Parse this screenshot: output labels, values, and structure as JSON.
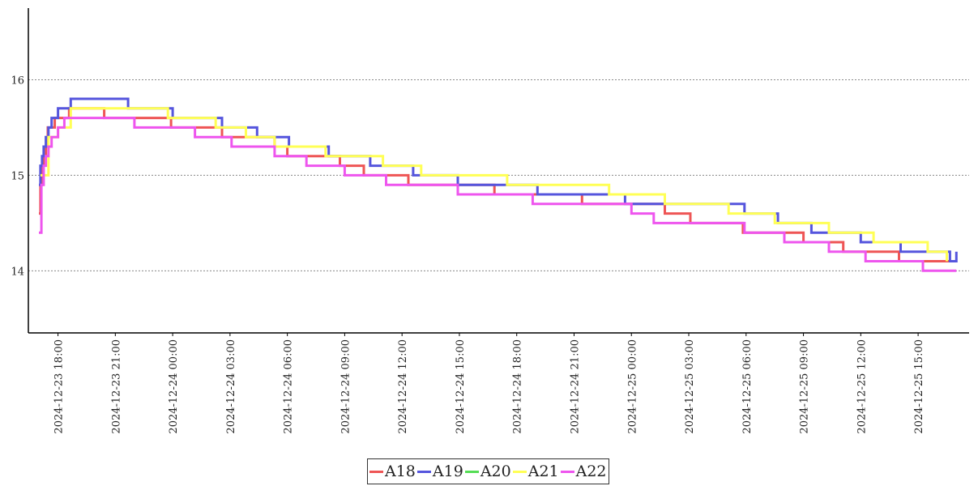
{
  "chart_data": {
    "type": "line",
    "step": true,
    "title": "",
    "xlabel": "",
    "ylabel": "",
    "ylim": [
      13.35,
      16.75
    ],
    "xlim": [
      "2024-12-23 16:27",
      "2024-12-25 17:40"
    ],
    "grid": {
      "y": true,
      "x": false,
      "style": "dotted"
    },
    "legend_position": "bottom-center",
    "yticks": [
      14,
      15,
      16
    ],
    "xticks": [
      "2024-12-23 18:00",
      "2024-12-23 21:00",
      "2024-12-24 00:00",
      "2024-12-24 03:00",
      "2024-12-24 06:00",
      "2024-12-24 09:00",
      "2024-12-24 12:00",
      "2024-12-24 15:00",
      "2024-12-24 18:00",
      "2024-12-24 21:00",
      "2024-12-25 00:00",
      "2024-12-25 03:00",
      "2024-12-25 06:00",
      "2024-12-25 09:00",
      "2024-12-25 12:00",
      "2024-12-25 15:00"
    ],
    "series": [
      {
        "name": "A18",
        "color": "#ee5555",
        "points": [
          [
            "2024-12-23 17:00",
            14.6
          ],
          [
            "2024-12-23 17:05",
            14.9
          ],
          [
            "2024-12-23 17:10",
            15.1
          ],
          [
            "2024-12-23 17:15",
            15.2
          ],
          [
            "2024-12-23 17:22",
            15.3
          ],
          [
            "2024-12-23 17:28",
            15.5
          ],
          [
            "2024-12-23 17:50",
            15.6
          ],
          [
            "2024-12-23 18:35",
            15.7
          ],
          [
            "2024-12-23 20:25",
            15.6
          ],
          [
            "2024-12-23 23:55",
            15.5
          ],
          [
            "2024-12-24 02:35",
            15.4
          ],
          [
            "2024-12-24 05:20",
            15.3
          ],
          [
            "2024-12-24 06:00",
            15.2
          ],
          [
            "2024-12-24 08:45",
            15.1
          ],
          [
            "2024-12-24 10:00",
            15.0
          ],
          [
            "2024-12-24 12:20",
            14.9
          ],
          [
            "2024-12-24 16:50",
            14.8
          ],
          [
            "2024-12-24 21:25",
            14.7
          ],
          [
            "2024-12-25 01:45",
            14.6
          ],
          [
            "2024-12-25 03:05",
            14.5
          ],
          [
            "2024-12-25 05:50",
            14.4
          ],
          [
            "2024-12-25 09:00",
            14.3
          ],
          [
            "2024-12-25 11:05",
            14.2
          ],
          [
            "2024-12-25 14:00",
            14.1
          ],
          [
            "2024-12-25 17:00",
            14.1
          ]
        ]
      },
      {
        "name": "A19",
        "color": "#5555dd",
        "points": [
          [
            "2024-12-23 17:00",
            14.9
          ],
          [
            "2024-12-23 17:05",
            15.1
          ],
          [
            "2024-12-23 17:10",
            15.2
          ],
          [
            "2024-12-23 17:15",
            15.3
          ],
          [
            "2024-12-23 17:22",
            15.4
          ],
          [
            "2024-12-23 17:30",
            15.5
          ],
          [
            "2024-12-23 17:40",
            15.6
          ],
          [
            "2024-12-23 18:00",
            15.7
          ],
          [
            "2024-12-23 18:40",
            15.8
          ],
          [
            "2024-12-23 21:40",
            15.7
          ],
          [
            "2024-12-24 00:00",
            15.6
          ],
          [
            "2024-12-24 02:35",
            15.5
          ],
          [
            "2024-12-24 04:25",
            15.4
          ],
          [
            "2024-12-24 06:05",
            15.3
          ],
          [
            "2024-12-24 08:10",
            15.2
          ],
          [
            "2024-12-24 10:20",
            15.1
          ],
          [
            "2024-12-24 12:35",
            15.0
          ],
          [
            "2024-12-24 14:55",
            14.9
          ],
          [
            "2024-12-24 19:05",
            14.8
          ],
          [
            "2024-12-24 23:40",
            14.7
          ],
          [
            "2024-12-25 05:55",
            14.6
          ],
          [
            "2024-12-25 07:40",
            14.5
          ],
          [
            "2024-12-25 09:25",
            14.4
          ],
          [
            "2024-12-25 12:00",
            14.3
          ],
          [
            "2024-12-25 14:05",
            14.2
          ],
          [
            "2024-12-25 16:40",
            14.1
          ],
          [
            "2024-12-25 17:00",
            14.2
          ]
        ]
      },
      {
        "name": "A20",
        "color": "#55dd55",
        "points": []
      },
      {
        "name": "A21",
        "color": "#ffff55",
        "points": [
          [
            "2024-12-23 17:05",
            15.0
          ],
          [
            "2024-12-23 17:30",
            15.4
          ],
          [
            "2024-12-23 18:00",
            15.5
          ],
          [
            "2024-12-23 18:40",
            15.7
          ],
          [
            "2024-12-23 21:40",
            15.7
          ],
          [
            "2024-12-23 23:45",
            15.6
          ],
          [
            "2024-12-24 02:15",
            15.5
          ],
          [
            "2024-12-24 03:50",
            15.4
          ],
          [
            "2024-12-24 05:20",
            15.3
          ],
          [
            "2024-12-24 08:00",
            15.2
          ],
          [
            "2024-12-24 11:00",
            15.1
          ],
          [
            "2024-12-24 13:00",
            15.0
          ],
          [
            "2024-12-24 17:30",
            14.9
          ],
          [
            "2024-12-24 19:10",
            14.9
          ],
          [
            "2024-12-24 22:50",
            14.8
          ],
          [
            "2024-12-25 01:45",
            14.7
          ],
          [
            "2024-12-25 05:05",
            14.6
          ],
          [
            "2024-12-25 07:30",
            14.5
          ],
          [
            "2024-12-25 10:20",
            14.4
          ],
          [
            "2024-12-25 12:40",
            14.3
          ],
          [
            "2024-12-25 14:00",
            14.3
          ],
          [
            "2024-12-25 15:30",
            14.2
          ],
          [
            "2024-12-25 16:30",
            14.1
          ]
        ]
      },
      {
        "name": "A22",
        "color": "#ee55ee",
        "points": [
          [
            "2024-12-23 17:00",
            14.4
          ],
          [
            "2024-12-23 17:08",
            14.9
          ],
          [
            "2024-12-23 17:15",
            15.1
          ],
          [
            "2024-12-23 17:22",
            15.2
          ],
          [
            "2024-12-23 17:30",
            15.3
          ],
          [
            "2024-12-23 17:40",
            15.4
          ],
          [
            "2024-12-23 18:00",
            15.5
          ],
          [
            "2024-12-23 18:20",
            15.6
          ],
          [
            "2024-12-23 22:00",
            15.5
          ],
          [
            "2024-12-24 01:10",
            15.4
          ],
          [
            "2024-12-24 03:05",
            15.3
          ],
          [
            "2024-12-24 05:20",
            15.2
          ],
          [
            "2024-12-24 07:00",
            15.1
          ],
          [
            "2024-12-24 09:00",
            15.0
          ],
          [
            "2024-12-24 11:10",
            14.9
          ],
          [
            "2024-12-24 14:55",
            14.8
          ],
          [
            "2024-12-24 18:50",
            14.7
          ],
          [
            "2024-12-25 00:00",
            14.6
          ],
          [
            "2024-12-25 01:10",
            14.5
          ],
          [
            "2024-12-25 05:55",
            14.4
          ],
          [
            "2024-12-25 08:00",
            14.3
          ],
          [
            "2024-12-25 10:20",
            14.2
          ],
          [
            "2024-12-25 12:15",
            14.1
          ],
          [
            "2024-12-25 15:15",
            14.0
          ],
          [
            "2024-12-25 17:00",
            14.0
          ]
        ]
      }
    ]
  },
  "legend": {
    "items": [
      {
        "label": "A18",
        "color": "#ee5555"
      },
      {
        "label": "A19",
        "color": "#5555dd"
      },
      {
        "label": "A20",
        "color": "#55dd55"
      },
      {
        "label": "A21",
        "color": "#ffff55"
      },
      {
        "label": "A22",
        "color": "#ee55ee"
      }
    ]
  }
}
